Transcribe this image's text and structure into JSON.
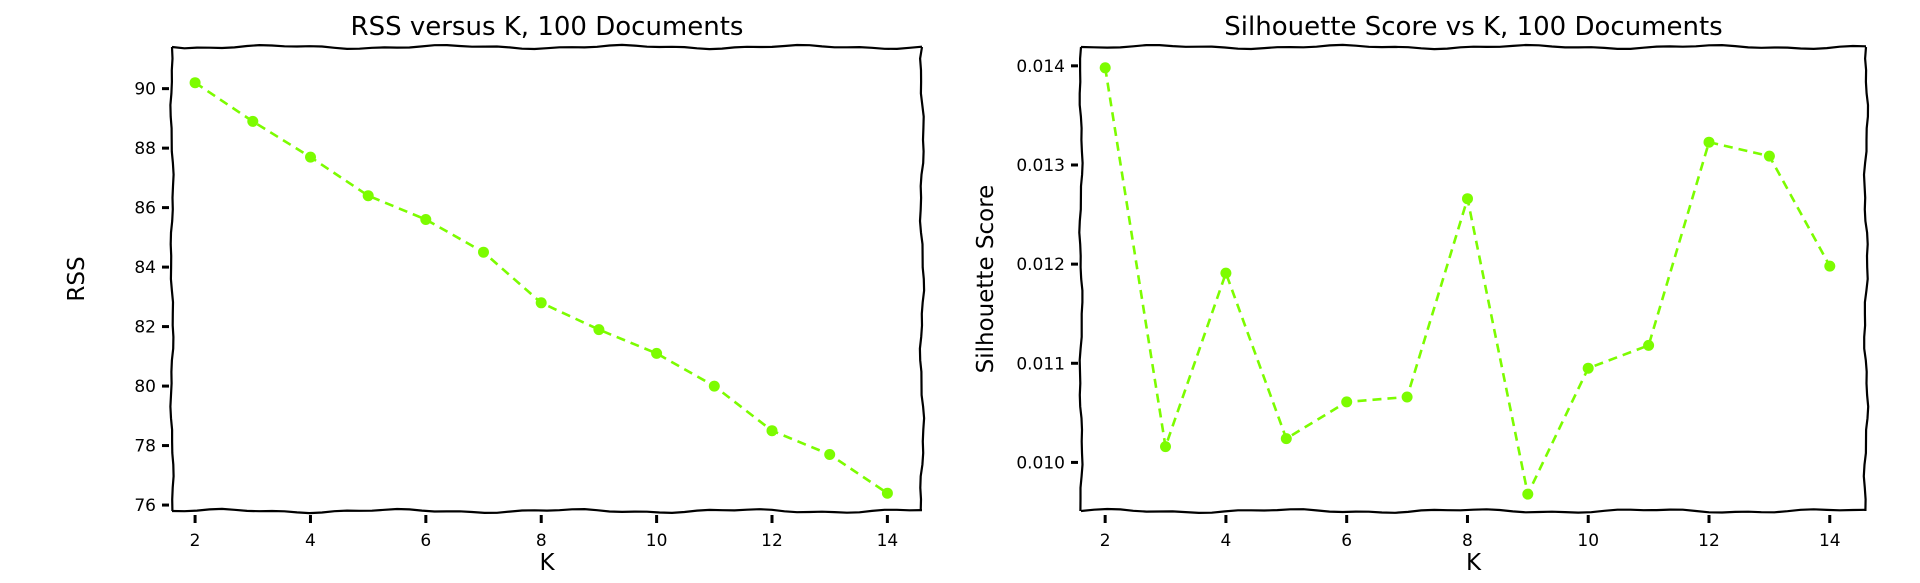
{
  "chart_data": [
    {
      "type": "line",
      "title": "RSS versus K, 100 Documents",
      "xlabel": "K",
      "ylabel": "RSS",
      "xlim": [
        1.6,
        14.6
      ],
      "ylim": [
        75.8,
        91.4
      ],
      "xticks": [
        2,
        4,
        6,
        8,
        10,
        12,
        14
      ],
      "yticks": [
        76,
        78,
        80,
        82,
        84,
        86,
        88,
        90
      ],
      "grid": false,
      "line_color": "#7cfc00",
      "line_style": "dashed",
      "x": [
        2,
        3,
        4,
        5,
        6,
        7,
        8,
        9,
        10,
        11,
        12,
        13,
        14
      ],
      "series": [
        {
          "values": [
            90.2,
            88.9,
            87.7,
            86.4,
            85.6,
            84.5,
            82.8,
            81.9,
            81.1,
            80.0,
            78.5,
            77.7,
            76.4
          ]
        }
      ]
    },
    {
      "type": "line",
      "title": "Silhouette Score vs K, 100 Documents",
      "xlabel": "K",
      "ylabel": "Silhouette Score",
      "xlim": [
        1.6,
        14.6
      ],
      "ylim": [
        0.00951,
        0.01419
      ],
      "xticks": [
        2,
        4,
        6,
        8,
        10,
        12,
        14
      ],
      "yticks": [
        "0.010",
        "0.011",
        "0.012",
        "0.013",
        "0.014"
      ],
      "grid": false,
      "line_color": "#7cfc00",
      "line_style": "dashed",
      "x": [
        2,
        3,
        4,
        5,
        6,
        7,
        8,
        9,
        10,
        11,
        12,
        13,
        14
      ],
      "series": [
        {
          "values": [
            0.01398,
            0.01016,
            0.01191,
            0.01024,
            0.01061,
            0.01066,
            0.01266,
            0.00968,
            0.01095,
            0.01118,
            0.01323,
            0.01309,
            0.01198
          ]
        }
      ]
    }
  ]
}
